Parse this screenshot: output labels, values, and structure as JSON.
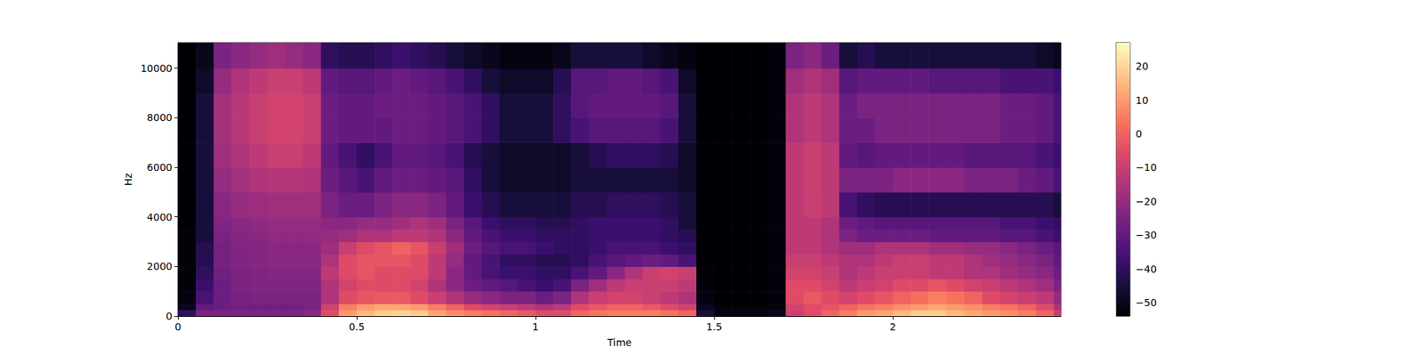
{
  "chart_data": {
    "type": "heatmap",
    "x_label": "Time",
    "y_label": "Hz",
    "color": "magma",
    "grid": false,
    "xlim": [
      0,
      2.47
    ],
    "xticks": [
      0,
      0.5,
      1,
      1.5,
      2
    ],
    "ylim": [
      0,
      11025
    ],
    "yticks": [
      0,
      2000,
      4000,
      6000,
      8000,
      10000
    ],
    "x_bins": [
      0,
      0.05,
      0.1,
      0.15,
      0.2,
      0.25,
      0.3,
      0.35,
      0.4,
      0.45,
      0.5,
      0.55,
      0.6,
      0.65,
      0.7,
      0.75,
      0.8,
      0.85,
      0.9,
      0.95,
      1.0,
      1.05,
      1.1,
      1.15,
      1.2,
      1.25,
      1.3,
      1.35,
      1.4,
      1.45,
      1.5,
      1.55,
      1.6,
      1.65,
      1.7,
      1.75,
      1.8,
      1.85,
      1.9,
      1.95,
      2.0,
      2.05,
      2.1,
      2.15,
      2.2,
      2.25,
      2.3,
      2.35,
      2.4,
      2.45,
      2.47
    ],
    "y_bins": [
      0,
      250,
      500,
      1000,
      1500,
      2000,
      2500,
      3000,
      3500,
      4000,
      5000,
      6000,
      7000,
      8000,
      9000,
      10000,
      11025
    ],
    "cells": [
      [
        -40,
        -25,
        -25,
        -25,
        -25,
        -25,
        -25,
        -22,
        -5,
        10,
        15,
        18,
        20,
        18,
        12,
        8,
        5,
        3,
        0,
        -2,
        -5,
        -5,
        0,
        3,
        5,
        5,
        5,
        3,
        0,
        -45,
        -52,
        -52,
        -52,
        -50,
        -10,
        -5,
        0,
        5,
        10,
        12,
        15,
        18,
        18,
        15,
        12,
        10,
        8,
        5,
        0,
        -10
      ],
      [
        -50,
        -30,
        -28,
        -27,
        -27,
        -27,
        -27,
        -25,
        -8,
        5,
        10,
        12,
        12,
        10,
        5,
        0,
        -5,
        -8,
        -10,
        -12,
        -15,
        -12,
        -5,
        -2,
        0,
        0,
        -2,
        -5,
        -8,
        -50,
        -53,
        -53,
        -53,
        -52,
        -8,
        -5,
        -3,
        0,
        3,
        5,
        8,
        10,
        12,
        10,
        8,
        5,
        3,
        0,
        -5,
        -15
      ],
      [
        -52,
        -35,
        -28,
        -26,
        -25,
        -25,
        -25,
        -25,
        -15,
        -5,
        -3,
        -2,
        -2,
        -5,
        -10,
        -15,
        -20,
        -22,
        -25,
        -25,
        -28,
        -25,
        -15,
        -10,
        -8,
        -8,
        -10,
        -12,
        -15,
        -52,
        -54,
        -54,
        -54,
        -53,
        -5,
        -2,
        -5,
        -8,
        -5,
        -3,
        0,
        2,
        5,
        3,
        0,
        -5,
        -8,
        -10,
        -12,
        -20
      ],
      [
        -53,
        -38,
        -28,
        -25,
        -24,
        -24,
        -24,
        -24,
        -15,
        -8,
        -5,
        -5,
        -5,
        -8,
        -15,
        -22,
        -28,
        -30,
        -32,
        -35,
        -38,
        -35,
        -25,
        -18,
        -12,
        -10,
        -10,
        -10,
        -12,
        -53,
        -54,
        -54,
        -54,
        -53,
        -5,
        -5,
        -8,
        -12,
        -10,
        -8,
        -5,
        -5,
        -3,
        -5,
        -8,
        -10,
        -12,
        -15,
        -18,
        -25
      ],
      [
        -53,
        -40,
        -27,
        -25,
        -24,
        -23,
        -23,
        -23,
        -12,
        -5,
        -3,
        -5,
        -5,
        -5,
        -12,
        -22,
        -30,
        -35,
        -38,
        -38,
        -40,
        -40,
        -35,
        -30,
        -22,
        -15,
        -10,
        -8,
        -10,
        -53,
        -54,
        -54,
        -54,
        -53,
        -8,
        -8,
        -10,
        -15,
        -12,
        -10,
        -10,
        -10,
        -12,
        -12,
        -15,
        -15,
        -18,
        -20,
        -22,
        -28
      ],
      [
        -53,
        -42,
        -26,
        -24,
        -23,
        -22,
        -22,
        -22,
        -15,
        -5,
        -3,
        -3,
        -3,
        -5,
        -12,
        -20,
        -30,
        -35,
        -40,
        -40,
        -42,
        -42,
        -40,
        -35,
        -32,
        -30,
        -28,
        -30,
        -35,
        -54,
        -54,
        -54,
        -54,
        -53,
        -10,
        -10,
        -12,
        -15,
        -15,
        -12,
        -10,
        -10,
        -12,
        -12,
        -15,
        -18,
        -20,
        -22,
        -25,
        -30
      ],
      [
        -53,
        -42,
        -26,
        -24,
        -23,
        -22,
        -22,
        -22,
        -18,
        -10,
        -5,
        -3,
        0,
        -3,
        -10,
        -18,
        -28,
        -32,
        -35,
        -35,
        -38,
        -40,
        -40,
        -38,
        -35,
        -35,
        -35,
        -38,
        -40,
        -54,
        -54,
        -54,
        -54,
        -53,
        -12,
        -12,
        -15,
        -18,
        -18,
        -15,
        -15,
        -15,
        -18,
        -18,
        -20,
        -20,
        -22,
        -25,
        -28,
        -32
      ],
      [
        -53,
        -45,
        -25,
        -23,
        -22,
        -21,
        -21,
        -21,
        -20,
        -18,
        -15,
        -15,
        -12,
        -12,
        -15,
        -22,
        -30,
        -35,
        -38,
        -38,
        -40,
        -40,
        -40,
        -38,
        -38,
        -38,
        -38,
        -40,
        -42,
        -54,
        -54,
        -54,
        -54,
        -53,
        -12,
        -12,
        -15,
        -25,
        -28,
        -28,
        -28,
        -28,
        -30,
        -30,
        -30,
        -30,
        -32,
        -32,
        -35,
        -38
      ],
      [
        -54,
        -45,
        -24,
        -22,
        -21,
        -20,
        -20,
        -20,
        -22,
        -22,
        -20,
        -20,
        -18,
        -15,
        -18,
        -25,
        -32,
        -38,
        -40,
        -40,
        -42,
        -42,
        -40,
        -38,
        -38,
        -38,
        -38,
        -40,
        -45,
        -54,
        -54,
        -54,
        -54,
        -53,
        -12,
        -12,
        -15,
        -28,
        -30,
        -32,
        -32,
        -32,
        -32,
        -32,
        -32,
        -32,
        -35,
        -35,
        -38,
        -40
      ],
      [
        -54,
        -45,
        -22,
        -20,
        -19,
        -18,
        -18,
        -18,
        -25,
        -28,
        -28,
        -25,
        -22,
        -22,
        -25,
        -30,
        -38,
        -42,
        -45,
        -45,
        -45,
        -45,
        -42,
        -42,
        -40,
        -40,
        -40,
        -42,
        -45,
        -54,
        -54,
        -54,
        -54,
        -53,
        -12,
        -10,
        -12,
        -35,
        -40,
        -42,
        -42,
        -42,
        -42,
        -42,
        -42,
        -42,
        -42,
        -42,
        -42,
        -45
      ],
      [
        -54,
        -45,
        -20,
        -17,
        -15,
        -14,
        -14,
        -15,
        -28,
        -32,
        -35,
        -30,
        -28,
        -28,
        -30,
        -32,
        -40,
        -45,
        -48,
        -48,
        -48,
        -48,
        -45,
        -45,
        -45,
        -45,
        -45,
        -45,
        -48,
        -54,
        -54,
        -54,
        -54,
        -53,
        -12,
        -10,
        -12,
        -25,
        -25,
        -25,
        -22,
        -22,
        -22,
        -22,
        -25,
        -25,
        -25,
        -28,
        -30,
        -35
      ],
      [
        -54,
        -45,
        -18,
        -15,
        -12,
        -10,
        -10,
        -12,
        -30,
        -35,
        -40,
        -35,
        -30,
        -30,
        -32,
        -35,
        -42,
        -45,
        -48,
        -48,
        -48,
        -48,
        -45,
        -42,
        -40,
        -40,
        -40,
        -42,
        -48,
        -54,
        -54,
        -54,
        -54,
        -53,
        -12,
        -10,
        -12,
        -30,
        -32,
        -30,
        -30,
        -30,
        -30,
        -30,
        -32,
        -32,
        -32,
        -32,
        -35,
        -38
      ],
      [
        -54,
        -45,
        -17,
        -13,
        -10,
        -8,
        -8,
        -10,
        -28,
        -30,
        -30,
        -30,
        -28,
        -28,
        -30,
        -32,
        -35,
        -40,
        -45,
        -45,
        -45,
        -40,
        -35,
        -32,
        -32,
        -32,
        -32,
        -35,
        -45,
        -54,
        -54,
        -54,
        -54,
        -53,
        -15,
        -12,
        -15,
        -28,
        -28,
        -25,
        -25,
        -25,
        -25,
        -25,
        -25,
        -25,
        -28,
        -28,
        -30,
        -35
      ],
      [
        -54,
        -45,
        -17,
        -13,
        -10,
        -8,
        -8,
        -10,
        -28,
        -30,
        -30,
        -28,
        -28,
        -28,
        -30,
        -32,
        -35,
        -40,
        -45,
        -45,
        -45,
        -40,
        -32,
        -30,
        -30,
        -30,
        -30,
        -32,
        -45,
        -54,
        -54,
        -54,
        -54,
        -53,
        -15,
        -12,
        -15,
        -28,
        -25,
        -25,
        -25,
        -25,
        -25,
        -25,
        -25,
        -25,
        -28,
        -28,
        -30,
        -35
      ],
      [
        -54,
        -48,
        -20,
        -15,
        -12,
        -10,
        -10,
        -12,
        -30,
        -32,
        -32,
        -30,
        -28,
        -30,
        -32,
        -35,
        -40,
        -45,
        -48,
        -48,
        -48,
        -42,
        -32,
        -32,
        -30,
        -30,
        -32,
        -35,
        -48,
        -54,
        -54,
        -54,
        -54,
        -53,
        -18,
        -15,
        -18,
        -32,
        -30,
        -30,
        -30,
        -30,
        -32,
        -32,
        -32,
        -32,
        -35,
        -35,
        -35,
        -38
      ],
      [
        -54,
        -50,
        -25,
        -22,
        -20,
        -18,
        -20,
        -22,
        -40,
        -42,
        -42,
        -40,
        -38,
        -40,
        -42,
        -45,
        -48,
        -50,
        -52,
        -52,
        -52,
        -50,
        -45,
        -45,
        -45,
        -45,
        -48,
        -50,
        -52,
        -54,
        -54,
        -54,
        -54,
        -53,
        -25,
        -22,
        -28,
        -45,
        -42,
        -45,
        -45,
        -45,
        -45,
        -45,
        -45,
        -45,
        -45,
        -45,
        -48,
        -50
      ]
    ],
    "colorbar": {
      "range": [
        -54,
        27
      ],
      "ticks": [
        20,
        10,
        0,
        {
          "value": -10,
          "label": "−10"
        },
        {
          "value": -20,
          "label": "−20"
        },
        {
          "value": -30,
          "label": "−30"
        },
        {
          "value": -40,
          "label": "−40"
        },
        {
          "value": -50,
          "label": "−50"
        }
      ]
    }
  }
}
